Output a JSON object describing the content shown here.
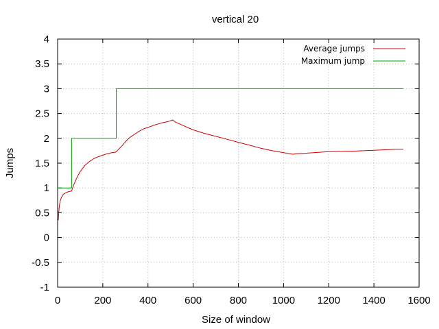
{
  "chart_data": {
    "type": "line",
    "title": "vertical 20",
    "xlabel": "Size of window",
    "ylabel": "Jumps",
    "xlim": [
      0,
      1600
    ],
    "ylim": [
      -1,
      4
    ],
    "xticks": [
      0,
      200,
      400,
      600,
      800,
      1000,
      1200,
      1400,
      1600
    ],
    "yticks": [
      -1,
      -0.5,
      0,
      0.5,
      1,
      1.5,
      2,
      2.5,
      3,
      3.5,
      4
    ],
    "ytick_labels": [
      "-1",
      "-0.5",
      "0",
      "0.5",
      "1",
      "1.5",
      "2",
      "2.5",
      "3",
      "3.5",
      "4"
    ],
    "grid": true,
    "legend_position": "top-right",
    "series": [
      {
        "name": "Average jumps",
        "color": "#cc0000",
        "x": [
          3,
          5,
          8,
          12,
          18,
          25,
          35,
          45,
          55,
          62,
          70,
          80,
          90,
          100,
          120,
          140,
          160,
          180,
          200,
          220,
          240,
          255,
          262,
          270,
          285,
          300,
          320,
          340,
          360,
          380,
          400,
          430,
          460,
          490,
          510,
          520,
          550,
          600,
          650,
          700,
          750,
          800,
          850,
          900,
          950,
          1000,
          1040,
          1060,
          1100,
          1200,
          1300,
          1400,
          1500,
          1530
        ],
        "y": [
          0.35,
          0.5,
          0.65,
          0.75,
          0.82,
          0.87,
          0.9,
          0.92,
          0.93,
          0.94,
          1.05,
          1.15,
          1.25,
          1.33,
          1.45,
          1.53,
          1.59,
          1.63,
          1.66,
          1.69,
          1.71,
          1.72,
          1.74,
          1.78,
          1.85,
          1.93,
          2.02,
          2.08,
          2.14,
          2.19,
          2.22,
          2.27,
          2.31,
          2.34,
          2.37,
          2.33,
          2.27,
          2.17,
          2.1,
          2.04,
          1.98,
          1.92,
          1.86,
          1.8,
          1.75,
          1.71,
          1.68,
          1.69,
          1.7,
          1.73,
          1.74,
          1.76,
          1.78,
          1.78
        ]
      },
      {
        "name": "Maximum jump",
        "color": "#00a000",
        "x": [
          0,
          62,
          62,
          260,
          260,
          1530
        ],
        "y": [
          1,
          1,
          2,
          2,
          3,
          3
        ]
      }
    ]
  }
}
